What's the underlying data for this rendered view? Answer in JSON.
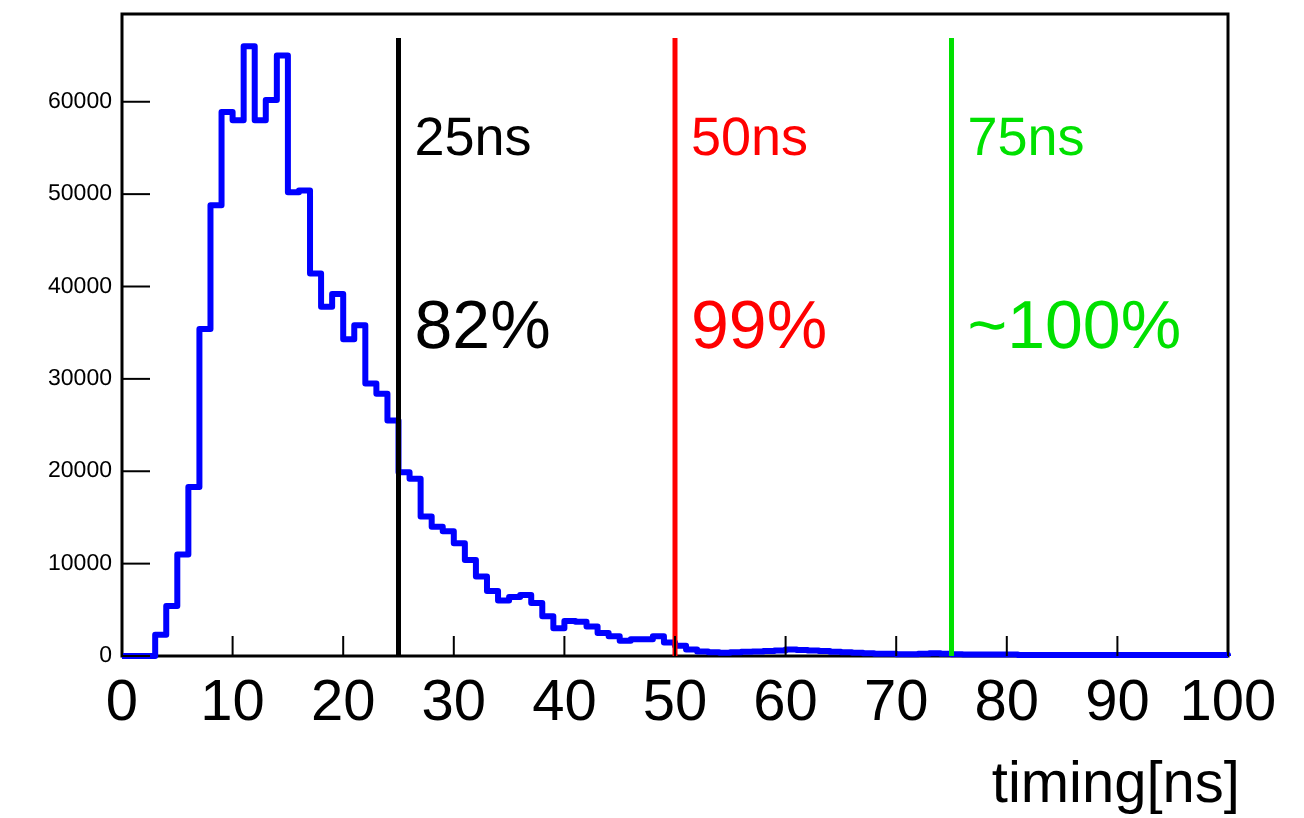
{
  "chart_data": {
    "type": "histogram",
    "xlabel": "timing[ns]",
    "bins": [
      0,
      1,
      2,
      3,
      4,
      5,
      6,
      7,
      8,
      9,
      10,
      11,
      12,
      13,
      14,
      15,
      16,
      17,
      18,
      19,
      20,
      21,
      22,
      23,
      24,
      25,
      26,
      27,
      28,
      29,
      30,
      31,
      32,
      33,
      34,
      35,
      36,
      37,
      38,
      39,
      40,
      41,
      42,
      43,
      44,
      45,
      46,
      47,
      48,
      49,
      50,
      51,
      52,
      53,
      54,
      55,
      56,
      57,
      58,
      59,
      60,
      61,
      62,
      63,
      64,
      65,
      66,
      67,
      68,
      69,
      70,
      71,
      72,
      73,
      74,
      75,
      76,
      77,
      78,
      79,
      80,
      81,
      82,
      83,
      84,
      85,
      86,
      87,
      88,
      89,
      90,
      91,
      92,
      93,
      94,
      95,
      96,
      97,
      98,
      99,
      100
    ],
    "values": [
      0,
      0,
      0,
      2300,
      5400,
      11000,
      18300,
      35400,
      48800,
      58900,
      58000,
      66000,
      58000,
      60200,
      65000,
      50200,
      50400,
      41400,
      37800,
      39200,
      34300,
      35800,
      29500,
      28400,
      25500,
      19900,
      19200,
      15100,
      14000,
      13500,
      12200,
      10400,
      8600,
      7050,
      6000,
      6400,
      6600,
      5750,
      4300,
      3000,
      3800,
      3700,
      3200,
      2500,
      2150,
      1650,
      1800,
      1800,
      2150,
      1450,
      1100,
      700,
      500,
      400,
      350,
      400,
      450,
      500,
      550,
      600,
      700,
      650,
      600,
      550,
      450,
      400,
      350,
      300,
      250,
      250,
      200,
      200,
      250,
      300,
      250,
      200,
      150,
      150,
      150,
      150,
      150,
      100,
      100,
      100,
      100,
      100,
      100,
      100,
      100,
      100,
      100,
      100,
      100,
      100,
      100,
      100,
      100,
      100,
      100,
      100
    ],
    "color": "#0000ff",
    "xlim": [
      0,
      100
    ],
    "xticks": [
      0,
      10,
      20,
      30,
      40,
      50,
      60,
      70,
      80,
      90,
      100
    ],
    "ylim": [
      0,
      69500
    ],
    "yticks": [
      0,
      10000,
      20000,
      30000,
      40000,
      50000,
      60000
    ],
    "grid": false,
    "ref_lines": [
      {
        "axis": "x",
        "value": 25,
        "label": "25ns",
        "color": "#000000"
      },
      {
        "axis": "x",
        "value": 50,
        "label": "50ns",
        "color": "#ff0000"
      },
      {
        "axis": "x",
        "value": 75,
        "label": "75ns",
        "color": "#00e000"
      }
    ],
    "annotations": [
      "82%",
      "99%",
      "~100%"
    ]
  }
}
